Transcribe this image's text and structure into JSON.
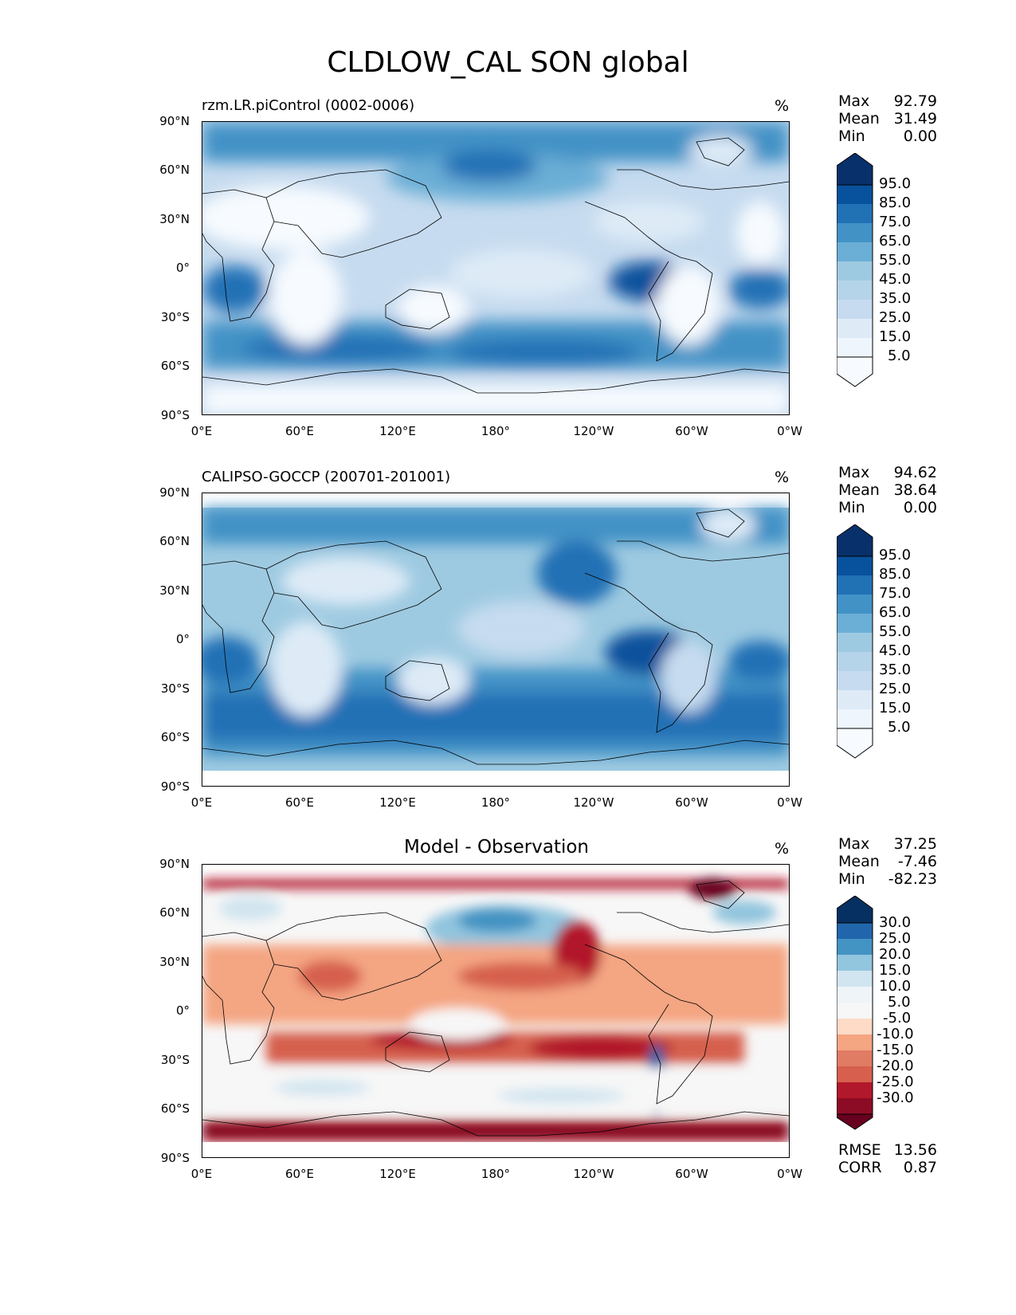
{
  "figure_title": "CLDLOW_CAL SON global",
  "panels": [
    {
      "title": "rzm.LR.piControl (0002-0006)",
      "units": "%",
      "stats": [
        {
          "label": "Max",
          "value": "92.79"
        },
        {
          "label": "Mean",
          "value": "31.49"
        },
        {
          "label": "Min",
          "value": "0.00"
        }
      ],
      "colorbar_ticks": [
        "95.0",
        "85.0",
        "75.0",
        "65.0",
        "55.0",
        "45.0",
        "35.0",
        "25.0",
        "15.0",
        "5.0"
      ]
    },
    {
      "title": "CALIPSO-GOCCP (200701-201001)",
      "units": "%",
      "stats": [
        {
          "label": "Max",
          "value": "94.62"
        },
        {
          "label": "Mean",
          "value": "38.64"
        },
        {
          "label": "Min",
          "value": "0.00"
        }
      ],
      "colorbar_ticks": [
        "95.0",
        "85.0",
        "75.0",
        "65.0",
        "55.0",
        "45.0",
        "35.0",
        "25.0",
        "15.0",
        "5.0"
      ]
    },
    {
      "title": "Model - Observation",
      "units": "%",
      "stats": [
        {
          "label": "Max",
          "value": "37.25"
        },
        {
          "label": "Mean",
          "value": "-7.46"
        },
        {
          "label": "Min",
          "value": "-82.23"
        }
      ],
      "colorbar_ticks": [
        "30.0",
        "25.0",
        "20.0",
        "15.0",
        "10.0",
        "5.0",
        "-5.0",
        "-10.0",
        "-15.0",
        "-20.0",
        "-25.0",
        "-30.0"
      ],
      "extra_stats": [
        {
          "label": "RMSE",
          "value": "13.56"
        },
        {
          "label": "CORR",
          "value": "0.87"
        }
      ]
    }
  ],
  "axes": {
    "x_ticks": [
      "0°E",
      "60°E",
      "120°E",
      "180°",
      "120°W",
      "60°W",
      "0°W"
    ],
    "y_ticks": [
      "90°N",
      "60°N",
      "30°N",
      "0°",
      "30°S",
      "60°S",
      "90°S"
    ]
  },
  "colors": {
    "blues": [
      "#f7fbff",
      "#deebf7",
      "#c6dbef",
      "#b5d4e9",
      "#9ecae1",
      "#6baed6",
      "#4292c6",
      "#2171b5",
      "#08519c",
      "#08306b"
    ],
    "diff": [
      "#67001f",
      "#b2182b",
      "#d6604d",
      "#f4a582",
      "#fddbc7",
      "#f7f7f7",
      "#d1e5f0",
      "#92c5de",
      "#4393c3",
      "#2166ac",
      "#053061"
    ]
  }
}
